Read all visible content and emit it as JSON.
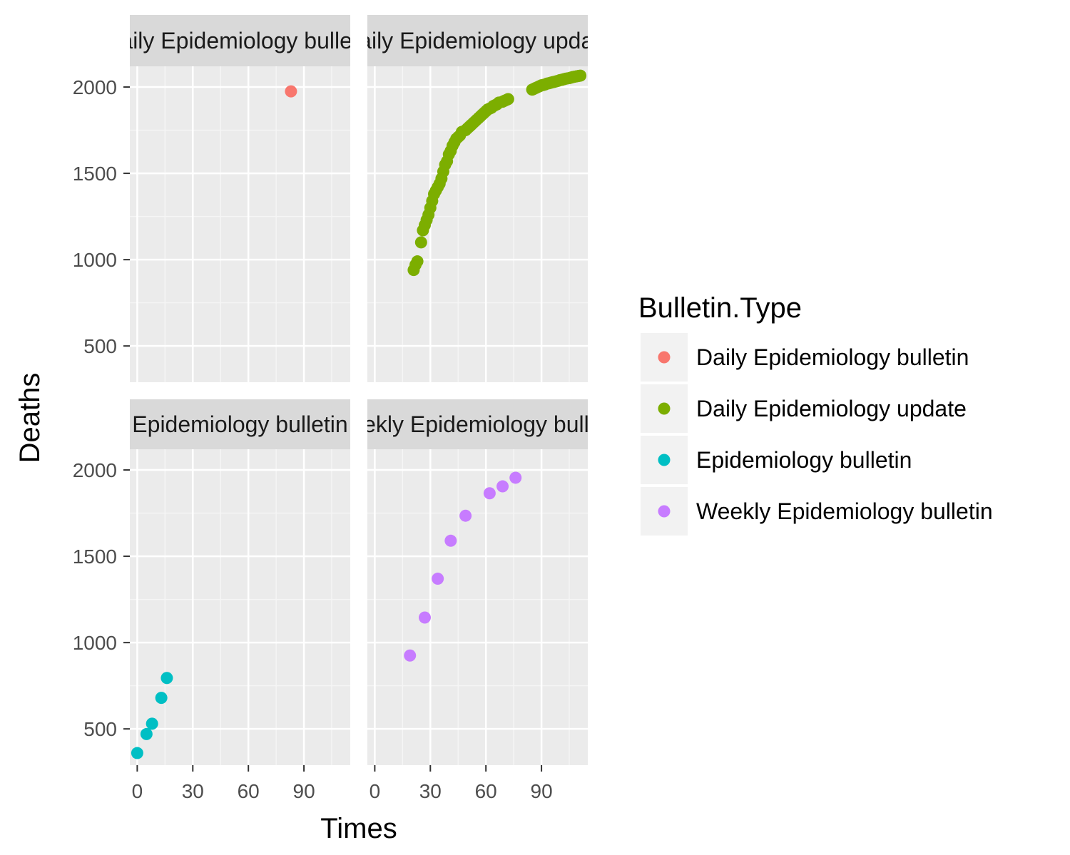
{
  "chart_data": {
    "type": "scatter",
    "xlabel": "Times",
    "ylabel": "Deaths",
    "xlim": [
      -4,
      115
    ],
    "ylim": [
      290,
      2120
    ],
    "x_ticks": [
      0,
      30,
      60,
      90
    ],
    "x_tick_labels": [
      "0",
      "30",
      "60",
      "90"
    ],
    "y_ticks": [
      500,
      1000,
      1500,
      2000
    ],
    "y_tick_labels": [
      "500",
      "1000",
      "1500",
      "2000"
    ],
    "grid": true,
    "legend": {
      "title": "Bulletin.Type",
      "position": "right"
    },
    "facets": [
      {
        "strip_label": "Daily Epidemiology bulletin",
        "x": [
          83
        ],
        "y": [
          1975
        ]
      },
      {
        "strip_label": "Daily Epidemiology update",
        "x": [
          21,
          22,
          23,
          25,
          26,
          27,
          28,
          29,
          30,
          31,
          32,
          33,
          34,
          35,
          36,
          37,
          38,
          39,
          40,
          41,
          42,
          43,
          44,
          45,
          46,
          47,
          49,
          50,
          51,
          52,
          53,
          54,
          55,
          56,
          57,
          58,
          59,
          60,
          61,
          62,
          63,
          64,
          65,
          66,
          67,
          69,
          70,
          71,
          72,
          85,
          86,
          87,
          88,
          89,
          90,
          91,
          92,
          93,
          94,
          95,
          96,
          97,
          98,
          99,
          100,
          101,
          102,
          103,
          104,
          105,
          106,
          107,
          108,
          109,
          110,
          111
        ],
        "y": [
          940,
          970,
          990,
          1100,
          1170,
          1200,
          1230,
          1260,
          1300,
          1340,
          1380,
          1400,
          1420,
          1440,
          1470,
          1510,
          1550,
          1570,
          1610,
          1630,
          1660,
          1680,
          1700,
          1710,
          1720,
          1740,
          1750,
          1760,
          1770,
          1780,
          1790,
          1800,
          1810,
          1820,
          1830,
          1840,
          1850,
          1860,
          1870,
          1875,
          1880,
          1890,
          1895,
          1900,
          1910,
          1915,
          1920,
          1925,
          1930,
          1985,
          1990,
          1995,
          2000,
          2005,
          2010,
          2012,
          2015,
          2020,
          2022,
          2025,
          2028,
          2030,
          2033,
          2036,
          2040,
          2042,
          2045,
          2048,
          2050,
          2052,
          2055,
          2058,
          2060,
          2062,
          2064,
          2066
        ]
      },
      {
        "strip_label": "Epidemiology bulletin",
        "x": [
          0,
          5,
          8,
          13,
          16
        ],
        "y": [
          360,
          470,
          530,
          680,
          795
        ]
      },
      {
        "strip_label": "Weekly Epidemiology bulletin",
        "x": [
          19,
          27,
          34,
          41,
          49,
          62,
          69,
          76
        ],
        "y": [
          925,
          1145,
          1370,
          1590,
          1735,
          1865,
          1905,
          1955
        ]
      }
    ],
    "series": [
      {
        "name": "Daily Epidemiology bulletin",
        "color": "#F8766D"
      },
      {
        "name": "Daily Epidemiology update",
        "color": "#7CAE00"
      },
      {
        "name": "Epidemiology bulletin",
        "color": "#00BFC4"
      },
      {
        "name": "Weekly Epidemiology bulletin",
        "color": "#C77CFF"
      }
    ]
  }
}
